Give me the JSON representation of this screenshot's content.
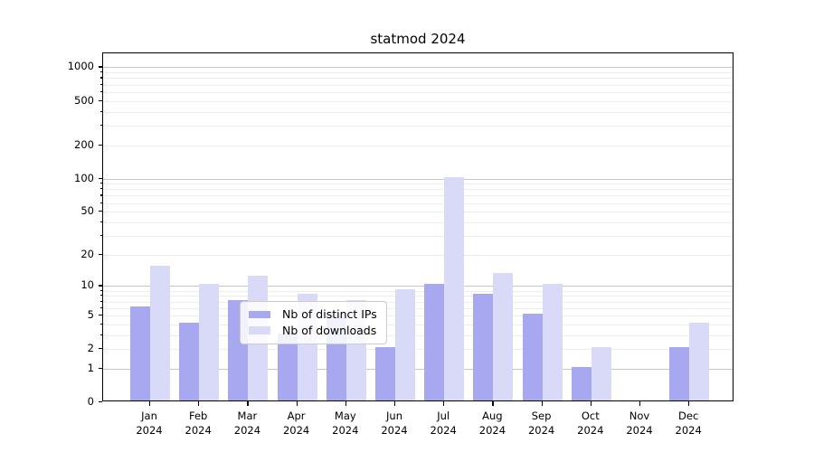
{
  "title": "statmod 2024",
  "chart_data": {
    "type": "bar",
    "title": "statmod 2024",
    "categories": [
      "Jan 2024",
      "Feb 2024",
      "Mar 2024",
      "Apr 2024",
      "May 2024",
      "Jun 2024",
      "Jul 2024",
      "Aug 2024",
      "Sep 2024",
      "Oct 2024",
      "Nov 2024",
      "Dec 2024"
    ],
    "month_labels": [
      "Jan",
      "Feb",
      "Mar",
      "Apr",
      "May",
      "Jun",
      "Jul",
      "Aug",
      "Sep",
      "Oct",
      "Nov",
      "Dec"
    ],
    "year_label": "2024",
    "series": [
      {
        "name": "Nb of distinct IPs",
        "color": "#a8a8f0",
        "values": [
          6,
          4,
          7,
          3,
          5,
          2,
          10,
          8,
          5,
          1,
          0,
          2
        ]
      },
      {
        "name": "Nb of downloads",
        "color": "#d9d9f8",
        "values": [
          15,
          10,
          12,
          8,
          7,
          9,
          100,
          13,
          10,
          2,
          0,
          4
        ]
      }
    ],
    "xlabel": "",
    "ylabel": "",
    "y_scale": "log10(1+x)",
    "y_ticks_labeled": [
      0,
      1,
      2,
      5,
      10,
      20,
      50,
      100,
      200,
      500,
      1000
    ],
    "y_gridlines_major": [
      1,
      10,
      100,
      1000
    ],
    "ylim": [
      0,
      1330
    ],
    "grid": true,
    "legend_position": "lower center",
    "colors": {
      "grid_major": "#c6c6c6",
      "grid_minor": "#ededed",
      "spine": "#000000",
      "background": "#ffffff"
    }
  }
}
